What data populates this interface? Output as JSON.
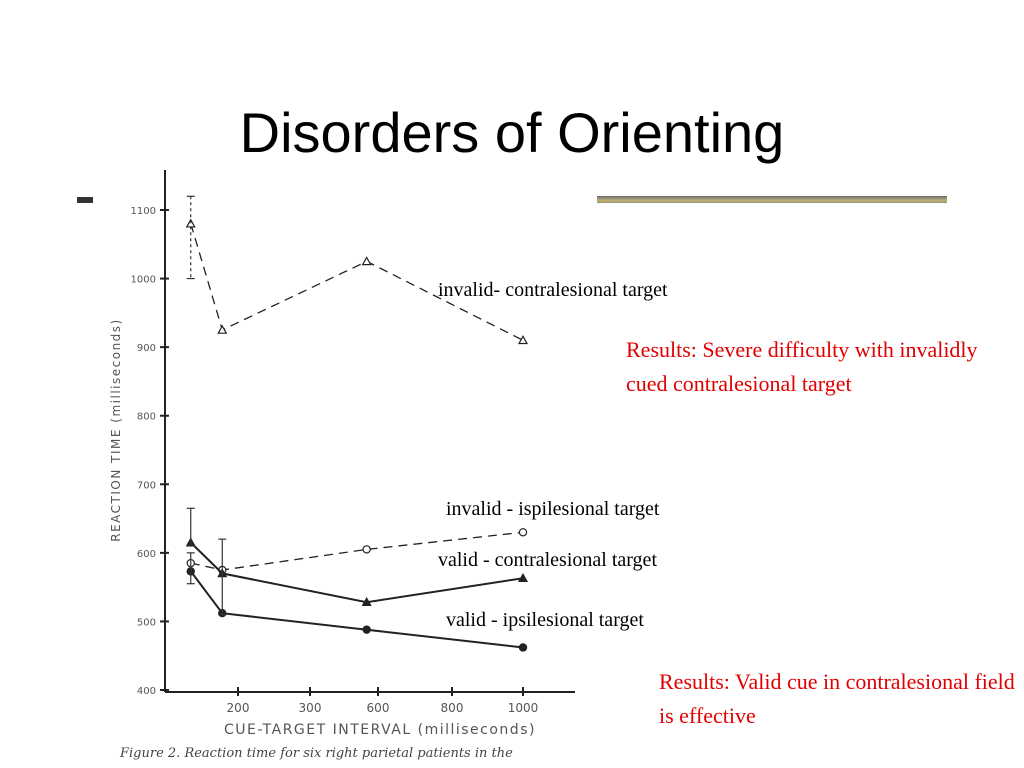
{
  "slide": {
    "title": "Disorders of Orienting",
    "result_1": "Results:  Severe difficulty with invalidly cued contralesional target",
    "result_2": "Results:  Valid cue in contralesional field is effective",
    "caption": "Figure 2. Reaction time for six right parietal patients in the"
  },
  "colors": {
    "result_text": "#e00000",
    "axis": "#222222"
  },
  "chart_data": {
    "type": "line",
    "xlabel": "CUE-TARGET INTERVAL (milliseconds)",
    "ylabel": "REACTION TIME (milliseconds)",
    "ylim": [
      400,
      1100
    ],
    "y_ticks": [
      400,
      500,
      600,
      700,
      800,
      900,
      1000,
      1100
    ],
    "x_ticks": [
      200,
      300,
      600,
      800,
      1000
    ],
    "x": [
      50,
      150,
      550,
      1000
    ],
    "series": [
      {
        "name": "invalid- contralesional target",
        "values": [
          1080,
          925,
          1025,
          910
        ],
        "style": "dashed",
        "marker": "open-triangle"
      },
      {
        "name": "invalid - ispilesional target",
        "values": [
          585,
          575,
          605,
          630
        ],
        "style": "dashed",
        "marker": "open-circle"
      },
      {
        "name": "valid - contralesional target",
        "values": [
          615,
          570,
          528,
          563
        ],
        "style": "solid",
        "marker": "filled-triangle"
      },
      {
        "name": "valid - ipsilesional target",
        "values": [
          573,
          512,
          488,
          462
        ],
        "style": "solid",
        "marker": "filled-circle"
      }
    ]
  }
}
